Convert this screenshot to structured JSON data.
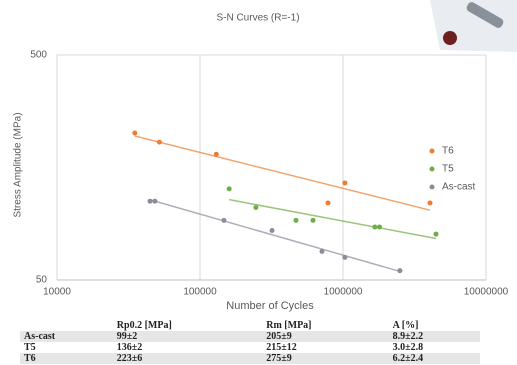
{
  "chart_data": {
    "type": "scatter",
    "title": "S-N Curves (R=-1)",
    "x_label": "Number of Cycles",
    "y_label": "Stress Amplitude (MPa)",
    "xscale": "log",
    "yscale": "log",
    "xlim": [
      10000,
      10000000
    ],
    "ylim": [
      50,
      500
    ],
    "xticks": [
      10000,
      100000,
      1000000,
      10000000
    ],
    "yticks": [
      50,
      500
    ],
    "grid": true,
    "trendlines": true,
    "legend": "right",
    "series": [
      {
        "name": "T6",
        "color": "#ed7d31",
        "x": [
          35000,
          52000,
          130000,
          785000,
          1030000,
          4060000
        ],
        "values": [
          225,
          205,
          181,
          110,
          135,
          110
        ]
      },
      {
        "name": "T5",
        "color": "#70ad47",
        "x": [
          160000,
          246000,
          469000,
          617000,
          1670000,
          1800000,
          4470000
        ],
        "values": [
          127,
          105,
          92,
          92,
          86,
          86,
          80
        ]
      },
      {
        "name": "As-cast",
        "color": "#8c8c9c",
        "x": [
          44700,
          48400,
          147000,
          319000,
          713000,
          1030000,
          2500000
        ],
        "values": [
          112,
          112,
          92,
          83,
          67,
          63,
          55
        ]
      }
    ]
  },
  "table": {
    "header": [
      "",
      "Rp0.2 [MPa]",
      "Rm [MPa]",
      "A [%]"
    ],
    "rows": [
      [
        "As-cast",
        "99±2",
        "205±9",
        "8.9±2.2"
      ],
      [
        "T5",
        "136±2",
        "215±12",
        "3.0±2.8"
      ],
      [
        "T6",
        "223±6",
        "275±9",
        "6.2±2.4"
      ]
    ]
  }
}
